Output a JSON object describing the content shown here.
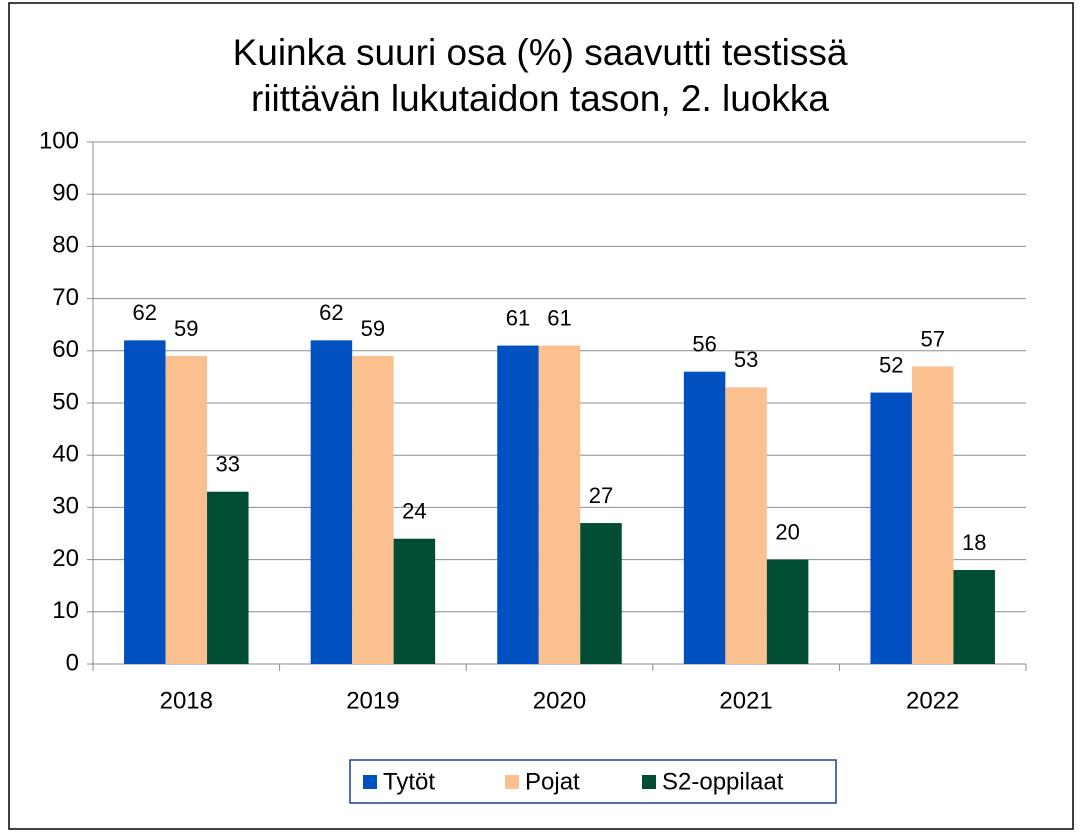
{
  "chart_data": {
    "type": "bar",
    "title": "Kuinka suuri osa (%) saavutti testissä riittävän lukutaidon tason, 2. luokka",
    "categories": [
      "2018",
      "2019",
      "2020",
      "2021",
      "2022"
    ],
    "series": [
      {
        "name": "Tytöt",
        "color": "#0050c0",
        "values": [
          62,
          62,
          61,
          56,
          52
        ]
      },
      {
        "name": "Pojat",
        "color": "#fac090",
        "values": [
          59,
          59,
          61,
          53,
          57
        ]
      },
      {
        "name": "S2-oppilaat",
        "color": "#004d33",
        "values": [
          33,
          24,
          27,
          20,
          18
        ]
      }
    ],
    "ylim": [
      0,
      100
    ],
    "yticks": [
      0,
      10,
      20,
      30,
      40,
      50,
      60,
      70,
      80,
      90,
      100
    ],
    "grid": true,
    "legend": "bottom"
  }
}
